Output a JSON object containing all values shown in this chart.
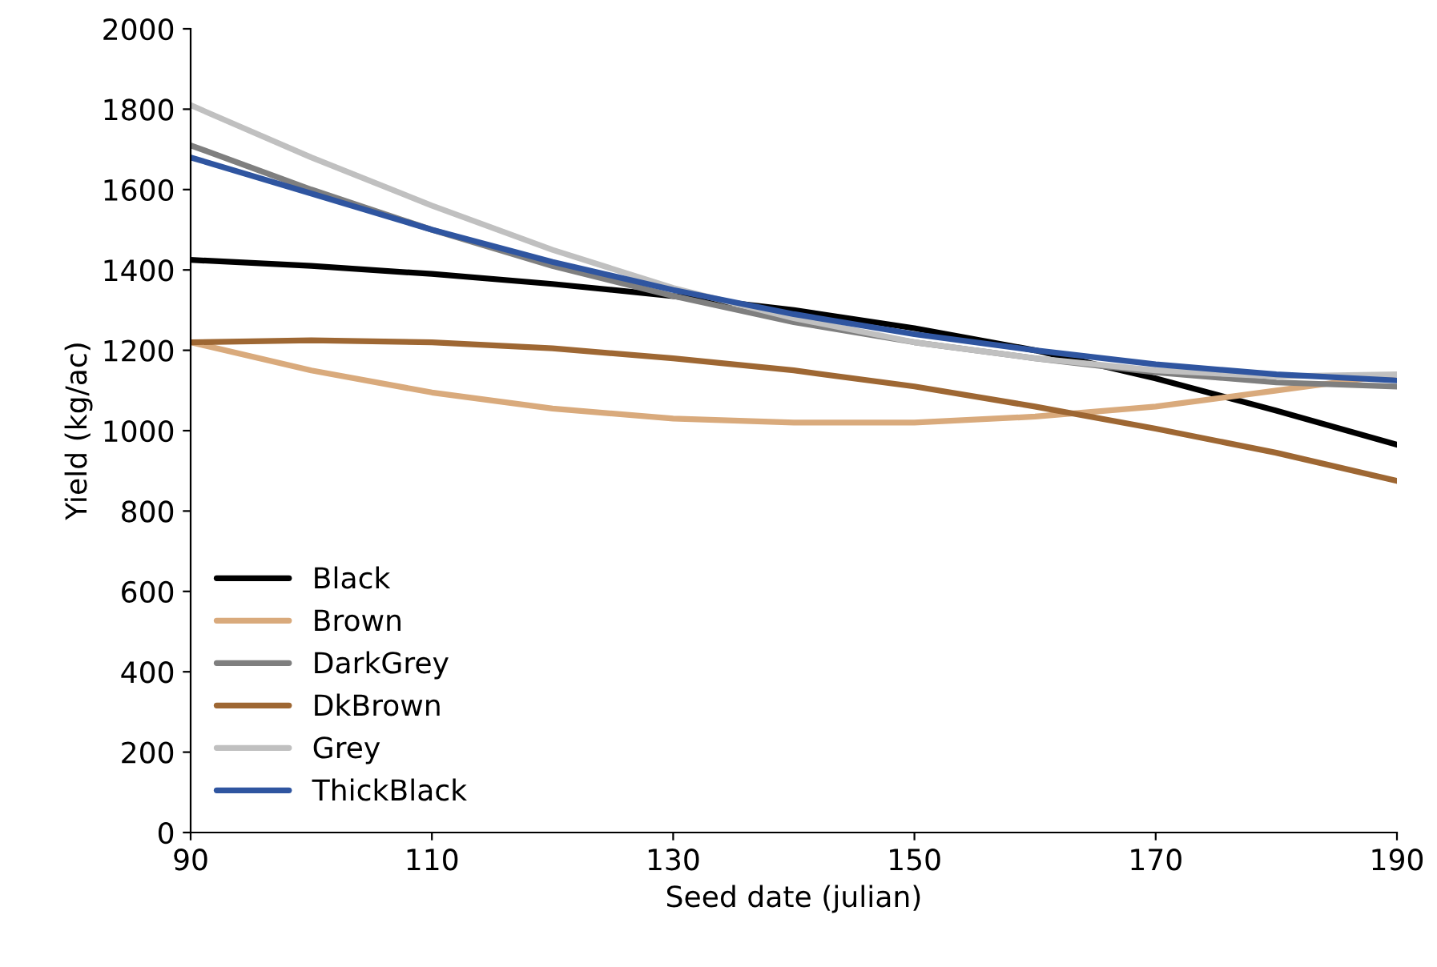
{
  "chart_data": {
    "type": "line",
    "xlabel": "Seed date (julian)",
    "ylabel": "Yield (kg/ac)",
    "x": [
      90,
      100,
      110,
      120,
      130,
      140,
      150,
      160,
      170,
      180,
      190
    ],
    "series": [
      {
        "name": "Black",
        "color": "#000000",
        "values": [
          1425,
          1410,
          1390,
          1365,
          1335,
          1300,
          1255,
          1200,
          1130,
          1050,
          965
        ]
      },
      {
        "name": "Brown",
        "color": "#d9aa7c",
        "values": [
          1220,
          1150,
          1095,
          1055,
          1030,
          1020,
          1020,
          1035,
          1060,
          1100,
          1140
        ]
      },
      {
        "name": "DarkGrey",
        "color": "#7f7f7f",
        "values": [
          1710,
          1600,
          1500,
          1410,
          1335,
          1270,
          1220,
          1180,
          1145,
          1120,
          1110
        ]
      },
      {
        "name": "DkBrown",
        "color": "#9e6733",
        "values": [
          1220,
          1225,
          1220,
          1205,
          1180,
          1150,
          1110,
          1060,
          1005,
          945,
          875
        ]
      },
      {
        "name": "Grey",
        "color": "#c0c0c0",
        "values": [
          1810,
          1680,
          1560,
          1450,
          1355,
          1280,
          1220,
          1180,
          1150,
          1135,
          1140
        ]
      },
      {
        "name": "ThickBlack",
        "color": "#2f55a0",
        "values": [
          1680,
          1590,
          1500,
          1420,
          1350,
          1290,
          1240,
          1200,
          1165,
          1140,
          1125
        ]
      }
    ],
    "xlim": [
      90,
      190
    ],
    "xticks": [
      90,
      110,
      130,
      150,
      170,
      190
    ],
    "ylim": [
      0,
      2000
    ],
    "yticks": [
      0,
      200,
      400,
      600,
      800,
      1000,
      1200,
      1400,
      1600,
      1800,
      2000
    ],
    "grid": false,
    "legend": "bottom left",
    "marker": "none",
    "line_style": "solid"
  }
}
